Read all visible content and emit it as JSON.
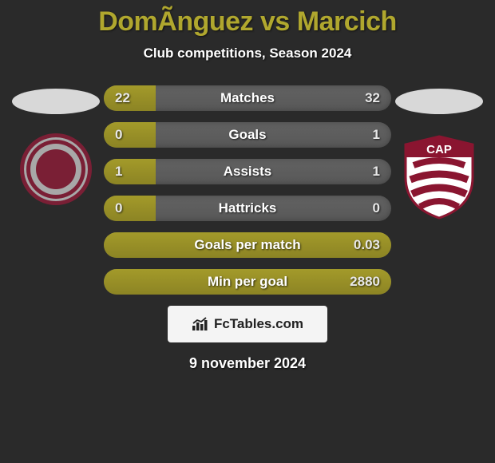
{
  "title": {
    "text": "DomÃ­nguez vs Marcich",
    "color": "#b0a72e",
    "fontsize": 34,
    "fontweight": 900
  },
  "subtitle": {
    "text": "Club competitions, Season 2024",
    "color": "#ffffff",
    "fontsize": 17
  },
  "colors": {
    "background": "#2a2a2a",
    "primary_accent": "#a39a2a",
    "primary_accent_dark": "#8c8424",
    "bar_bg": "#585858",
    "bar_bg_light": "#626262",
    "text_white": "#ffffff",
    "text_light": "#e8e8e8",
    "oval": "#d8d8d8",
    "crest_left_ring": "#7a1f35",
    "crest_left_field": "#a8a8a8",
    "crest_right_primary": "#8a1530",
    "crest_right_field": "#ffffff",
    "badge_bg": "#f4f4f4",
    "badge_text": "#222222"
  },
  "left_team": {
    "oval_color": "#d8d8d8",
    "crest_text": "⊕"
  },
  "right_team": {
    "oval_color": "#d8d8d8",
    "crest_text": "CAP"
  },
  "bars_layout": {
    "height": 32,
    "radius": 16,
    "gap": 14,
    "label_fontsize": 17,
    "value_fontsize": 17
  },
  "stats": [
    {
      "label": "Matches",
      "left_val": "22",
      "right_val": "32",
      "left_pct": 18,
      "right_pct": 0
    },
    {
      "label": "Goals",
      "left_val": "0",
      "right_val": "1",
      "left_pct": 18,
      "right_pct": 0
    },
    {
      "label": "Assists",
      "left_val": "1",
      "right_val": "1",
      "left_pct": 18,
      "right_pct": 0
    },
    {
      "label": "Hattricks",
      "left_val": "0",
      "right_val": "0",
      "left_pct": 18,
      "right_pct": 0
    },
    {
      "label": "Goals per match",
      "left_val": "",
      "right_val": "0.03",
      "left_pct": 100,
      "right_pct": 0
    },
    {
      "label": "Min per goal",
      "left_val": "",
      "right_val": "2880",
      "left_pct": 100,
      "right_pct": 0
    }
  ],
  "footer_badge": {
    "text": "FcTables.com",
    "bg": "#f4f4f4",
    "color": "#222222"
  },
  "footer_date": {
    "text": "9 november 2024",
    "color": "#ffffff"
  }
}
